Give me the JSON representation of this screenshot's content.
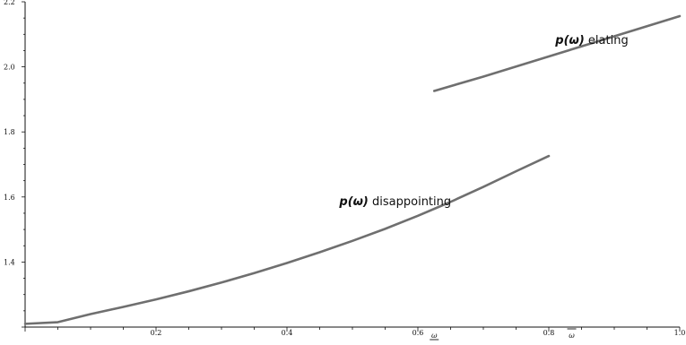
{
  "chart_data": {
    "type": "line",
    "title": "",
    "xlabel": "",
    "ylabel": "",
    "xlim": [
      0.0,
      1.0
    ],
    "ylim": [
      1.2,
      2.2
    ],
    "grid": false,
    "legend": "none",
    "colors": {
      "line": "#6f6f6f",
      "axis": "#111111",
      "text": "#111111",
      "background": "#ffffff"
    },
    "x_ticks": [
      {
        "value": 0.2,
        "label": "0.2"
      },
      {
        "value": 0.4,
        "label": "0.4"
      },
      {
        "value": 0.6,
        "label": "0.6"
      },
      {
        "value": 0.8,
        "label": "0.8"
      },
      {
        "value": 1.0,
        "label": "1.0"
      }
    ],
    "y_ticks": [
      {
        "value": 1.4,
        "label": "1.4"
      },
      {
        "value": 1.6,
        "label": "1.6"
      },
      {
        "value": 1.8,
        "label": "1.8"
      },
      {
        "value": 2.0,
        "label": "2.0"
      },
      {
        "value": 2.2,
        "label": "2.2"
      }
    ],
    "special_x_ticks": [
      {
        "value": 0.625,
        "label": "ω",
        "mark": "underline"
      },
      {
        "value": 0.835,
        "label": "ω",
        "mark": "overline"
      }
    ],
    "series": [
      {
        "x": [
          0.0,
          0.05,
          0.1,
          0.15,
          0.2,
          0.25,
          0.3,
          0.35,
          0.4,
          0.45,
          0.5,
          0.55,
          0.6,
          0.65,
          0.7,
          0.75,
          0.8
        ],
        "y": [
          1.21,
          1.215,
          1.24,
          1.262,
          1.285,
          1.31,
          1.337,
          1.366,
          1.397,
          1.43,
          1.465,
          1.502,
          1.542,
          1.585,
          1.631,
          1.679,
          1.726
        ]
      },
      {
        "x": [
          0.625,
          0.7,
          0.8,
          0.9,
          1.0
        ],
        "y": [
          1.926,
          1.97,
          2.032,
          2.094,
          2.156
        ]
      }
    ],
    "annotations": [
      {
        "math": "p(ω)",
        "text": "disappointing",
        "x": 0.48,
        "y": 1.575
      },
      {
        "math": "p(ω)",
        "text": "elating",
        "x": 0.81,
        "y": 2.07
      }
    ]
  }
}
